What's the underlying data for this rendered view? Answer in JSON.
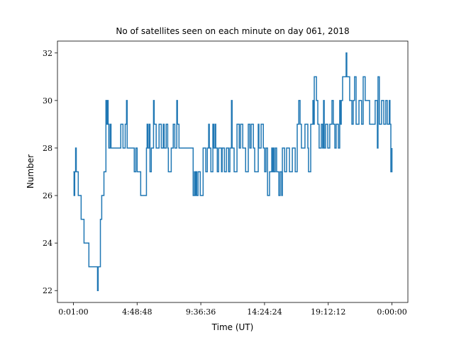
{
  "chart_data": {
    "type": "line",
    "drawstyle": "steps-post",
    "title": "No of satellites seen on each minute on day 061, 2018",
    "xlabel": "Time (UT)",
    "ylabel": "Number",
    "x": [
      1,
      4,
      7,
      11,
      14,
      23,
      36,
      49,
      71,
      110,
      113,
      123,
      129,
      139,
      148,
      151,
      155,
      158,
      161,
      167,
      171,
      215,
      225,
      235,
      241,
      244,
      276,
      283,
      289,
      305,
      331,
      334,
      337,
      343,
      347,
      353,
      363,
      366,
      375,
      388,
      398,
      407,
      411,
      420,
      427,
      430,
      443,
      452,
      459,
      468,
      471,
      478,
      542,
      548,
      551,
      555,
      558,
      564,
      574,
      587,
      599,
      606,
      612,
      615,
      622,
      631,
      635,
      641,
      644,
      651,
      657,
      670,
      673,
      683,
      692,
      702,
      708,
      715,
      718,
      727,
      740,
      750,
      756,
      766,
      779,
      791,
      798,
      804,
      814,
      820,
      836,
      839,
      849,
      859,
      865,
      871,
      878,
      887,
      897,
      900,
      903,
      907,
      913,
      919,
      929,
      935,
      942,
      945,
      955,
      964,
      977,
      990,
      1003,
      1012,
      1019,
      1025,
      1031,
      1047,
      1060,
      1063,
      1073,
      1083,
      1086,
      1089,
      1099,
      1105,
      1111,
      1121,
      1127,
      1131,
      1134,
      1140,
      1150,
      1159,
      1169,
      1175,
      1182,
      1188,
      1198,
      1204,
      1207,
      1211,
      1217,
      1233,
      1236,
      1249,
      1259,
      1265,
      1271,
      1278,
      1291,
      1303,
      1310,
      1319,
      1339,
      1364,
      1374,
      1377,
      1383,
      1393,
      1403,
      1412,
      1419,
      1428,
      1431,
      1435,
      1440
    ],
    "y": [
      27,
      26,
      27,
      28,
      27,
      26,
      25,
      24,
      23,
      22,
      23,
      25,
      26,
      27,
      30,
      29,
      30,
      29,
      28,
      29,
      28,
      29,
      28,
      29,
      30,
      28,
      27,
      28,
      27,
      26,
      28,
      29,
      28,
      29,
      27,
      28,
      30,
      29,
      28,
      29,
      28,
      29,
      28,
      29,
      28,
      27,
      28,
      29,
      28,
      30,
      29,
      28,
      26,
      27,
      26,
      27,
      26,
      27,
      26,
      28,
      27,
      28,
      29,
      28,
      27,
      29,
      28,
      29,
      28,
      27,
      28,
      27,
      28,
      27,
      28,
      27,
      28,
      30,
      28,
      27,
      29,
      28,
      29,
      28,
      27,
      29,
      28,
      29,
      28,
      27,
      29,
      28,
      29,
      28,
      27,
      28,
      26,
      27,
      28,
      27,
      28,
      27,
      28,
      27,
      26,
      27,
      26,
      28,
      27,
      28,
      27,
      28,
      27,
      29,
      30,
      29,
      28,
      29,
      28,
      27,
      29,
      30,
      29,
      31,
      30,
      29,
      28,
      29,
      28,
      30,
      28,
      29,
      28,
      29,
      30,
      29,
      28,
      29,
      28,
      30,
      29,
      30,
      31,
      32,
      31,
      30,
      29,
      30,
      31,
      29,
      30,
      29,
      31,
      30,
      29,
      30,
      28,
      31,
      29,
      30,
      29,
      30,
      29,
      30,
      29,
      27,
      28
    ],
    "color": "#1f77b4",
    "xlim": [
      -70.95,
      1511.95
    ],
    "xticks": [
      {
        "value": 1,
        "label": "0:01:00"
      },
      {
        "value": 288.8,
        "label": "4:48:48"
      },
      {
        "value": 576.6,
        "label": "9:36:36"
      },
      {
        "value": 864.4,
        "label": "14:24:24"
      },
      {
        "value": 1152.2,
        "label": "19:12:12"
      },
      {
        "value": 1440,
        "label": "0:00:00"
      }
    ],
    "ylim": [
      21.5,
      32.5
    ],
    "yticks": [
      22,
      24,
      26,
      28,
      30,
      32
    ]
  }
}
